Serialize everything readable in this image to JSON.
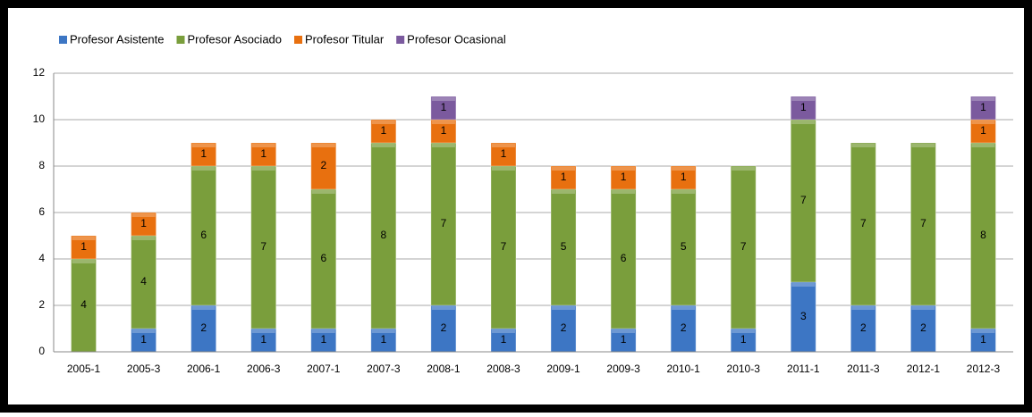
{
  "chart_data": {
    "type": "stacked_bar",
    "categories": [
      "2005-1",
      "2005-3",
      "2006-1",
      "2006-3",
      "2007-1",
      "2007-3",
      "2008-1",
      "2008-3",
      "2009-1",
      "2009-3",
      "2010-1",
      "2010-3",
      "2011-1",
      "2011-3",
      "2012-1",
      "2012-3"
    ],
    "series": [
      {
        "name": "Profesor Asistente",
        "color": "#3d76c4",
        "values": [
          null,
          1,
          2,
          1,
          1,
          1,
          2,
          1,
          2,
          1,
          2,
          1,
          3,
          2,
          2,
          1
        ]
      },
      {
        "name": "Profesor Asociado",
        "color": "#7a9e3c",
        "values": [
          4,
          4,
          6,
          7,
          6,
          8,
          7,
          7,
          5,
          6,
          5,
          7,
          7,
          7,
          7,
          8
        ]
      },
      {
        "name": "Profesor Titular",
        "color": "#e8700f",
        "values": [
          1,
          1,
          1,
          1,
          2,
          1,
          1,
          1,
          1,
          1,
          1,
          null,
          null,
          null,
          null,
          1
        ]
      },
      {
        "name": "Profesor Ocasional",
        "color": "#7b5a9e",
        "values": [
          null,
          null,
          null,
          null,
          null,
          null,
          1,
          null,
          null,
          null,
          null,
          null,
          1,
          null,
          null,
          1
        ]
      }
    ],
    "ylim": [
      0,
      12
    ],
    "yticks": [
      0,
      2,
      4,
      6,
      8,
      10,
      12
    ],
    "grid": true,
    "legend": "top-left"
  }
}
